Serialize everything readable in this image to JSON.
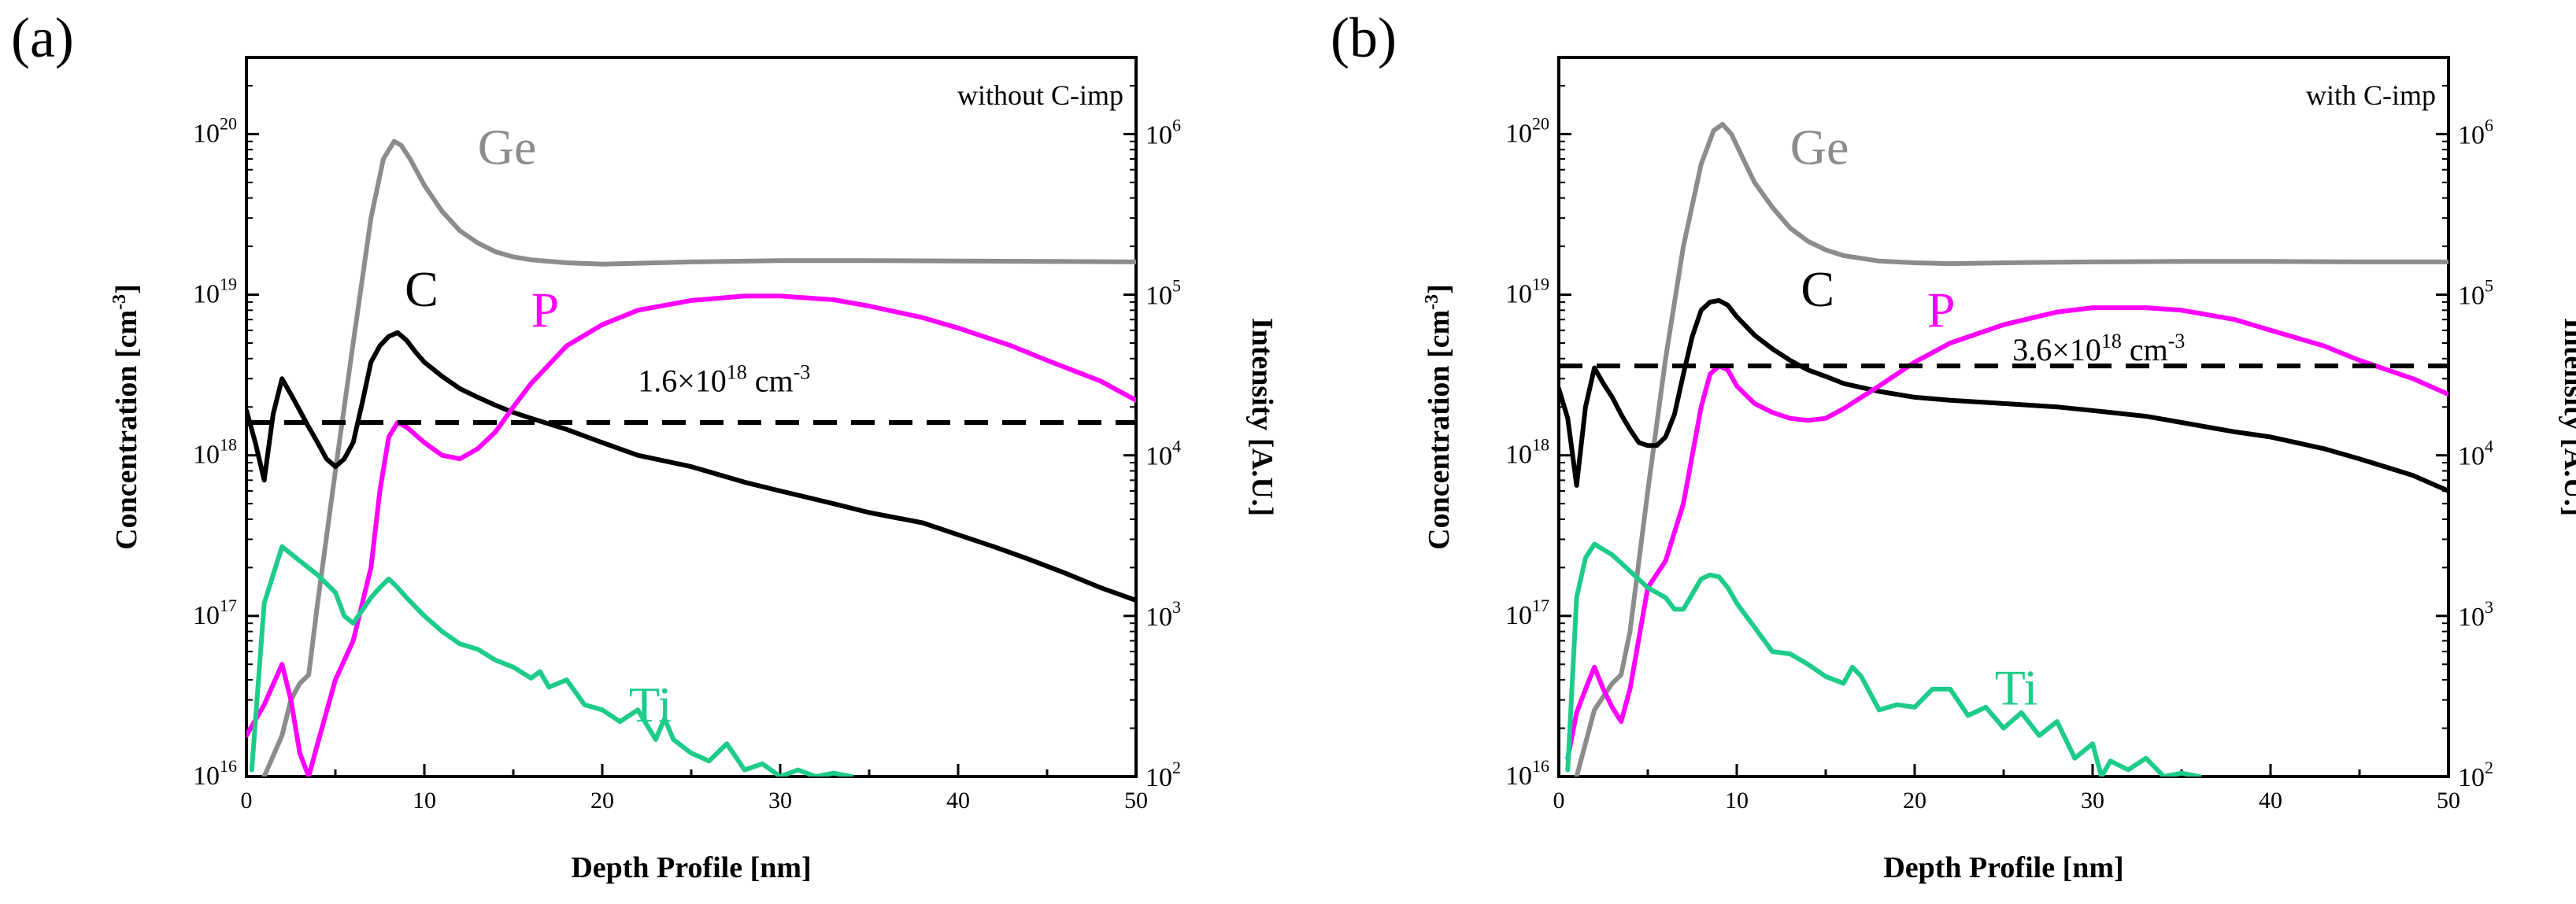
{
  "figure": {
    "panels": [
      "(a)",
      "(b)"
    ]
  },
  "chart_data": [
    {
      "panel": "(a)",
      "type": "line",
      "annotation": "without C-imp",
      "xlabel": "Depth Profile [nm]",
      "ylabel_left": "Concentration [cm-3]",
      "ylabel_left_main": "Concentration [cm",
      "ylabel_left_sup": "-3",
      "ylabel_left_end": "]",
      "ylabel_right": "Intensity [A.U.]",
      "xlim": [
        0,
        50
      ],
      "ylim_left": [
        1e+16,
        3e+20
      ],
      "ylim_right": [
        100,
        3000000.0
      ],
      "x_ticks": [
        "0",
        "10",
        "20",
        "30",
        "40",
        "50"
      ],
      "y_left_ticks": [
        {
          "base": "10",
          "exp": "16"
        },
        {
          "base": "10",
          "exp": "17"
        },
        {
          "base": "10",
          "exp": "18"
        },
        {
          "base": "10",
          "exp": "19"
        },
        {
          "base": "10",
          "exp": "20"
        }
      ],
      "y_right_ticks": [
        {
          "base": "10",
          "exp": "2"
        },
        {
          "base": "10",
          "exp": "3"
        },
        {
          "base": "10",
          "exp": "4"
        },
        {
          "base": "10",
          "exp": "5"
        },
        {
          "base": "10",
          "exp": "6"
        }
      ],
      "reference_line": {
        "value": 1.6e+18,
        "label_main": "1.6×10",
        "label_sup": "18",
        "label_unit": " cm",
        "label_unit_sup": "-3",
        "label_pos": [
          22,
          2.5e+18
        ]
      },
      "series": [
        {
          "name": "Ge",
          "axis": "right",
          "color": "#8c8c8c",
          "label_pos": [
            13,
            650000.0
          ],
          "x": [
            1,
            2,
            2.5,
            3,
            3.5,
            4,
            5,
            6,
            7,
            7.7,
            8.3,
            8.7,
            9.2,
            10,
            11,
            12,
            13,
            14,
            15,
            16,
            18,
            20,
            22,
            25,
            30,
            35,
            40,
            45,
            50
          ],
          "y": [
            100,
            180,
            300,
            380,
            430,
            1200,
            8000,
            50000,
            300000,
            700000,
            900000,
            850000,
            700000,
            480000,
            330000,
            250000,
            210000,
            185000,
            172000,
            165000,
            158000,
            155000,
            157000,
            160000,
            163000,
            163000,
            162000,
            161000,
            160000
          ]
        },
        {
          "name": "C",
          "axis": "left",
          "color": "#000000",
          "label_pos": [
            8.9,
            8.5e+18
          ],
          "x": [
            0,
            0.5,
            1,
            1.5,
            2,
            2.5,
            3,
            3.5,
            4,
            4.5,
            5,
            5.5,
            6,
            6.5,
            7,
            7.5,
            8,
            8.5,
            9,
            9.5,
            10,
            11,
            12,
            13,
            14,
            15,
            16,
            18,
            20,
            22,
            25,
            28,
            30,
            33,
            35,
            38,
            40,
            42,
            44,
            46,
            48,
            50
          ],
          "y": [
            1.9e+18,
            1.2e+18,
            7e+17,
            1.8e+18,
            3e+18,
            2.4e+18,
            1.9e+18,
            1.5e+18,
            1.2e+18,
            9.5e+17,
            8.5e+17,
            9.5e+17,
            1.2e+18,
            2.1e+18,
            3.8e+18,
            4.8e+18,
            5.5e+18,
            5.8e+18,
            5.2e+18,
            4.4e+18,
            3.8e+18,
            3.1e+18,
            2.6e+18,
            2.3e+18,
            2.05e+18,
            1.85e+18,
            1.7e+18,
            1.45e+18,
            1.2e+18,
            1e+18,
            8.5e+17,
            6.8e+17,
            6e+17,
            5e+17,
            4.4e+17,
            3.8e+17,
            3.2e+17,
            2.7e+17,
            2.25e+17,
            1.85e+17,
            1.5e+17,
            1.25e+17
          ]
        },
        {
          "name": "P",
          "axis": "left",
          "color": "#ff00ff",
          "label_pos": [
            16,
            6.3e+18
          ],
          "x": [
            0,
            1,
            2,
            2.5,
            3,
            3.5,
            4,
            5,
            6,
            7,
            7.5,
            8,
            8.5,
            9,
            10,
            11,
            12,
            13,
            14,
            15,
            16,
            18,
            20,
            22,
            25,
            28,
            30,
            33,
            35,
            38,
            40,
            43,
            45,
            48,
            50
          ],
          "y": [
            1.8e+16,
            2.8e+16,
            5e+16,
            3e+16,
            1.4e+16,
            1e+16,
            1.6e+16,
            4e+16,
            7e+16,
            2e+17,
            6e+17,
            1.3e+18,
            1.6e+18,
            1.5e+18,
            1.2e+18,
            1e+18,
            9.5e+17,
            1.1e+18,
            1.4e+18,
            2e+18,
            2.8e+18,
            4.8e+18,
            6.5e+18,
            8e+18,
            9.2e+18,
            9.8e+18,
            9.8e+18,
            9.3e+18,
            8.5e+18,
            7.2e+18,
            6.2e+18,
            4.8e+18,
            3.9e+18,
            2.9e+18,
            2.2e+18
          ]
        },
        {
          "name": "Ti",
          "axis": "left",
          "color": "#1ecc8a",
          "label_pos": [
            21.5,
            2.2e+16
          ],
          "x": [
            0.3,
            1,
            2,
            3,
            4,
            5,
            5.5,
            6,
            7,
            7.5,
            8,
            8.5,
            9,
            10,
            11,
            12,
            13,
            14,
            15,
            16,
            16.5,
            17,
            18,
            19,
            20,
            21,
            22,
            23,
            23.5,
            24,
            25,
            26,
            27,
            28,
            29,
            30,
            31,
            32,
            33,
            34
          ],
          "y": [
            1.1e+16,
            1.2e+17,
            2.7e+17,
            2.2e+17,
            1.8e+17,
            1.4e+17,
            1e+17,
            9e+16,
            1.3e+17,
            1.5e+17,
            1.7e+17,
            1.5e+17,
            1.3e+17,
            1e+17,
            8e+16,
            6.7e+16,
            6.2e+16,
            5.3e+16,
            4.8e+16,
            4.1e+16,
            4.5e+16,
            3.6e+16,
            4e+16,
            2.8e+16,
            2.6e+16,
            2.2e+16,
            2.6e+16,
            1.7e+16,
            2.3e+16,
            1.7e+16,
            1.4e+16,
            1.25e+16,
            1.6e+16,
            1.1e+16,
            1.2e+16,
            1e+16,
            1.1e+16,
            1e+16,
            1.05e+16,
            1e+16
          ]
        }
      ]
    },
    {
      "panel": "(b)",
      "type": "line",
      "annotation": "with C-imp",
      "xlabel": "Depth Profile [nm]",
      "ylabel_left": "Concentration [cm-3]",
      "ylabel_left_main": "Concentration [cm",
      "ylabel_left_sup": "-3",
      "ylabel_left_end": "]",
      "ylabel_right": "Intensity [A.U.]",
      "xlim": [
        0,
        50
      ],
      "ylim_left": [
        1e+16,
        3e+20
      ],
      "ylim_right": [
        100,
        3000000.0
      ],
      "x_ticks": [
        "0",
        "10",
        "20",
        "30",
        "40",
        "50"
      ],
      "y_left_ticks": [
        {
          "base": "10",
          "exp": "16"
        },
        {
          "base": "10",
          "exp": "17"
        },
        {
          "base": "10",
          "exp": "18"
        },
        {
          "base": "10",
          "exp": "19"
        },
        {
          "base": "10",
          "exp": "20"
        }
      ],
      "y_right_ticks": [
        {
          "base": "10",
          "exp": "2"
        },
        {
          "base": "10",
          "exp": "3"
        },
        {
          "base": "10",
          "exp": "4"
        },
        {
          "base": "10",
          "exp": "5"
        },
        {
          "base": "10",
          "exp": "6"
        }
      ],
      "reference_line": {
        "value": 3.6e+18,
        "label_main": "3.6×10",
        "label_sup": "18",
        "label_unit": " cm",
        "label_unit_sup": "-3",
        "label_pos": [
          25.5,
          3.9e+18
        ]
      },
      "series": [
        {
          "name": "Ge",
          "axis": "right",
          "color": "#8c8c8c",
          "label_pos": [
            13,
            650000.0
          ],
          "x": [
            1,
            2,
            3,
            3.5,
            4,
            5,
            6,
            7,
            8,
            8.7,
            9.2,
            9.7,
            10.5,
            11,
            12,
            13,
            14,
            15,
            16,
            18,
            20,
            22,
            25,
            30,
            35,
            40,
            45,
            50
          ],
          "y": [
            100,
            260,
            380,
            430,
            800,
            6000,
            40000,
            200000,
            650000,
            1050000,
            1150000,
            1000000,
            650000,
            500000,
            350000,
            260000,
            215000,
            190000,
            175000,
            162000,
            158000,
            156000,
            158000,
            160000,
            161000,
            161000,
            160000,
            160000
          ]
        },
        {
          "name": "C",
          "axis": "left",
          "color": "#000000",
          "label_pos": [
            13.6,
            8.5e+18
          ],
          "x": [
            0,
            0.5,
            1,
            1.5,
            2,
            2.5,
            3,
            3.5,
            4,
            4.5,
            5,
            5.5,
            6,
            6.5,
            7,
            7.5,
            8,
            8.5,
            9,
            9.5,
            10,
            11,
            12,
            13,
            14,
            15,
            16,
            18,
            20,
            22,
            25,
            28,
            30,
            33,
            35,
            38,
            40,
            43,
            45,
            48,
            50
          ],
          "y": [
            2.6e+18,
            1.7e+18,
            6.5e+17,
            2e+18,
            3.5e+18,
            2.8e+18,
            2.3e+18,
            1.8e+18,
            1.45e+18,
            1.2e+18,
            1.15e+18,
            1.15e+18,
            1.3e+18,
            1.8e+18,
            3.2e+18,
            5.5e+18,
            8e+18,
            9e+18,
            9.2e+18,
            8.6e+18,
            7.3e+18,
            5.6e+18,
            4.6e+18,
            3.9e+18,
            3.4e+18,
            3.1e+18,
            2.8e+18,
            2.5e+18,
            2.3e+18,
            2.2e+18,
            2.1e+18,
            2e+18,
            1.9e+18,
            1.75e+18,
            1.6e+18,
            1.4e+18,
            1.3e+18,
            1.1e+18,
            9.5e+17,
            7.5e+17,
            6e+17
          ]
        },
        {
          "name": "P",
          "axis": "left",
          "color": "#ff00ff",
          "label_pos": [
            20.7,
            6.3e+18
          ],
          "x": [
            0.5,
            1,
            1.5,
            2,
            2.5,
            3,
            3.5,
            4,
            5,
            6,
            7,
            7.5,
            8,
            8.5,
            9,
            9.5,
            10,
            11,
            12,
            13,
            14,
            15,
            16,
            18,
            20,
            22,
            25,
            28,
            30,
            33,
            35,
            38,
            40,
            43,
            45,
            48,
            50
          ],
          "y": [
            1.3e+16,
            2.5e+16,
            3.5e+16,
            4.8e+16,
            3.5e+16,
            2.7e+16,
            2.2e+16,
            3.5e+16,
            1.5e+17,
            2.2e+17,
            5e+17,
            1e+18,
            2e+18,
            3.2e+18,
            3.6e+18,
            3.4e+18,
            2.7e+18,
            2.1e+18,
            1.85e+18,
            1.7e+18,
            1.65e+18,
            1.7e+18,
            1.95e+18,
            2.7e+18,
            3.8e+18,
            5e+18,
            6.5e+18,
            7.8e+18,
            8.3e+18,
            8.3e+18,
            8e+18,
            7e+18,
            6e+18,
            4.8e+18,
            3.9e+18,
            3e+18,
            2.4e+18
          ]
        },
        {
          "name": "Ti",
          "axis": "left",
          "color": "#1ecc8a",
          "label_pos": [
            24.5,
            2.8e+16
          ],
          "x": [
            0.5,
            1,
            1.5,
            2,
            3,
            4,
            5,
            6,
            6.5,
            7,
            8,
            8.5,
            9,
            9.5,
            10,
            11,
            12,
            13,
            14,
            15,
            16,
            16.5,
            17,
            18,
            19,
            20,
            21,
            22,
            23,
            24,
            25,
            26,
            27,
            28,
            29,
            30,
            30.5,
            31,
            32,
            33,
            34,
            35,
            36
          ],
          "y": [
            1.1e+16,
            1.3e+17,
            2.3e+17,
            2.8e+17,
            2.4e+17,
            1.9e+17,
            1.5e+17,
            1.3e+17,
            1.1e+17,
            1.1e+17,
            1.7e+17,
            1.8e+17,
            1.75e+17,
            1.5e+17,
            1.2e+17,
            8.5e+16,
            6e+16,
            5.8e+16,
            5e+16,
            4.2e+16,
            3.8e+16,
            4.8e+16,
            4.2e+16,
            2.6e+16,
            2.8e+16,
            2.7e+16,
            3.5e+16,
            3.5e+16,
            2.4e+16,
            2.7e+16,
            2e+16,
            2.5e+16,
            1.8e+16,
            2.2e+16,
            1.3e+16,
            1.6e+16,
            1e+16,
            1.25e+16,
            1.1e+16,
            1.3e+16,
            1e+16,
            1.05e+16,
            1e+16
          ]
        }
      ]
    }
  ]
}
